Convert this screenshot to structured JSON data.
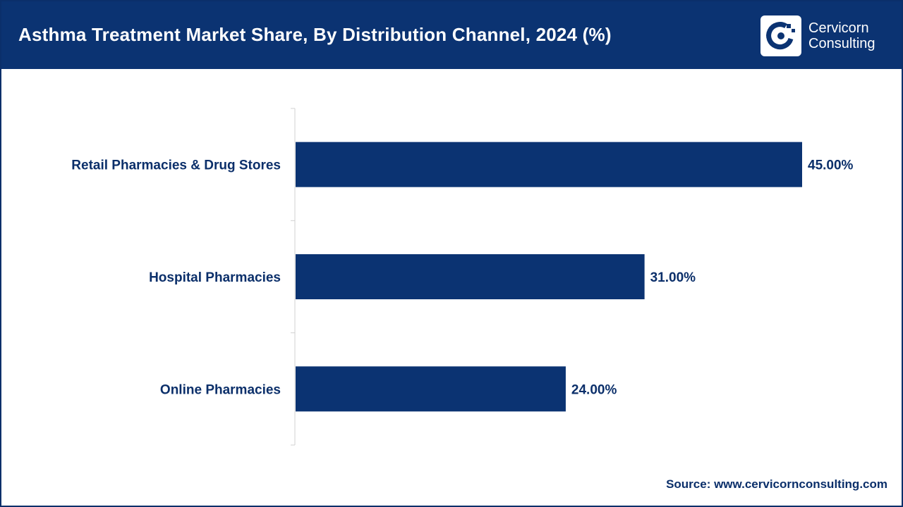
{
  "header": {
    "title": "Asthma Treatment Market Share, By Distribution Channel, 2024 (%)",
    "logo_line1": "Cervicorn",
    "logo_line2": "Consulting",
    "logo_icon": "cervicorn-logo-icon"
  },
  "colors": {
    "header_bg": "#0b3372",
    "bar": "#0b3372",
    "text": "#0b2f6a"
  },
  "chart_data": {
    "type": "bar",
    "orientation": "horizontal",
    "title": "Asthma Treatment Market Share, By Distribution Channel, 2024 (%)",
    "categories": [
      "Retail Pharmacies & Drug Stores",
      "Hospital Pharmacies",
      "Online Pharmacies"
    ],
    "values": [
      45.0,
      31.0,
      24.0
    ],
    "value_labels": [
      "45.00%",
      "31.00%",
      "24.00%"
    ],
    "xlim": [
      0,
      50
    ],
    "grid": false,
    "legend": "none"
  },
  "footer": {
    "source": "Source: www.cervicornconsulting.com"
  }
}
